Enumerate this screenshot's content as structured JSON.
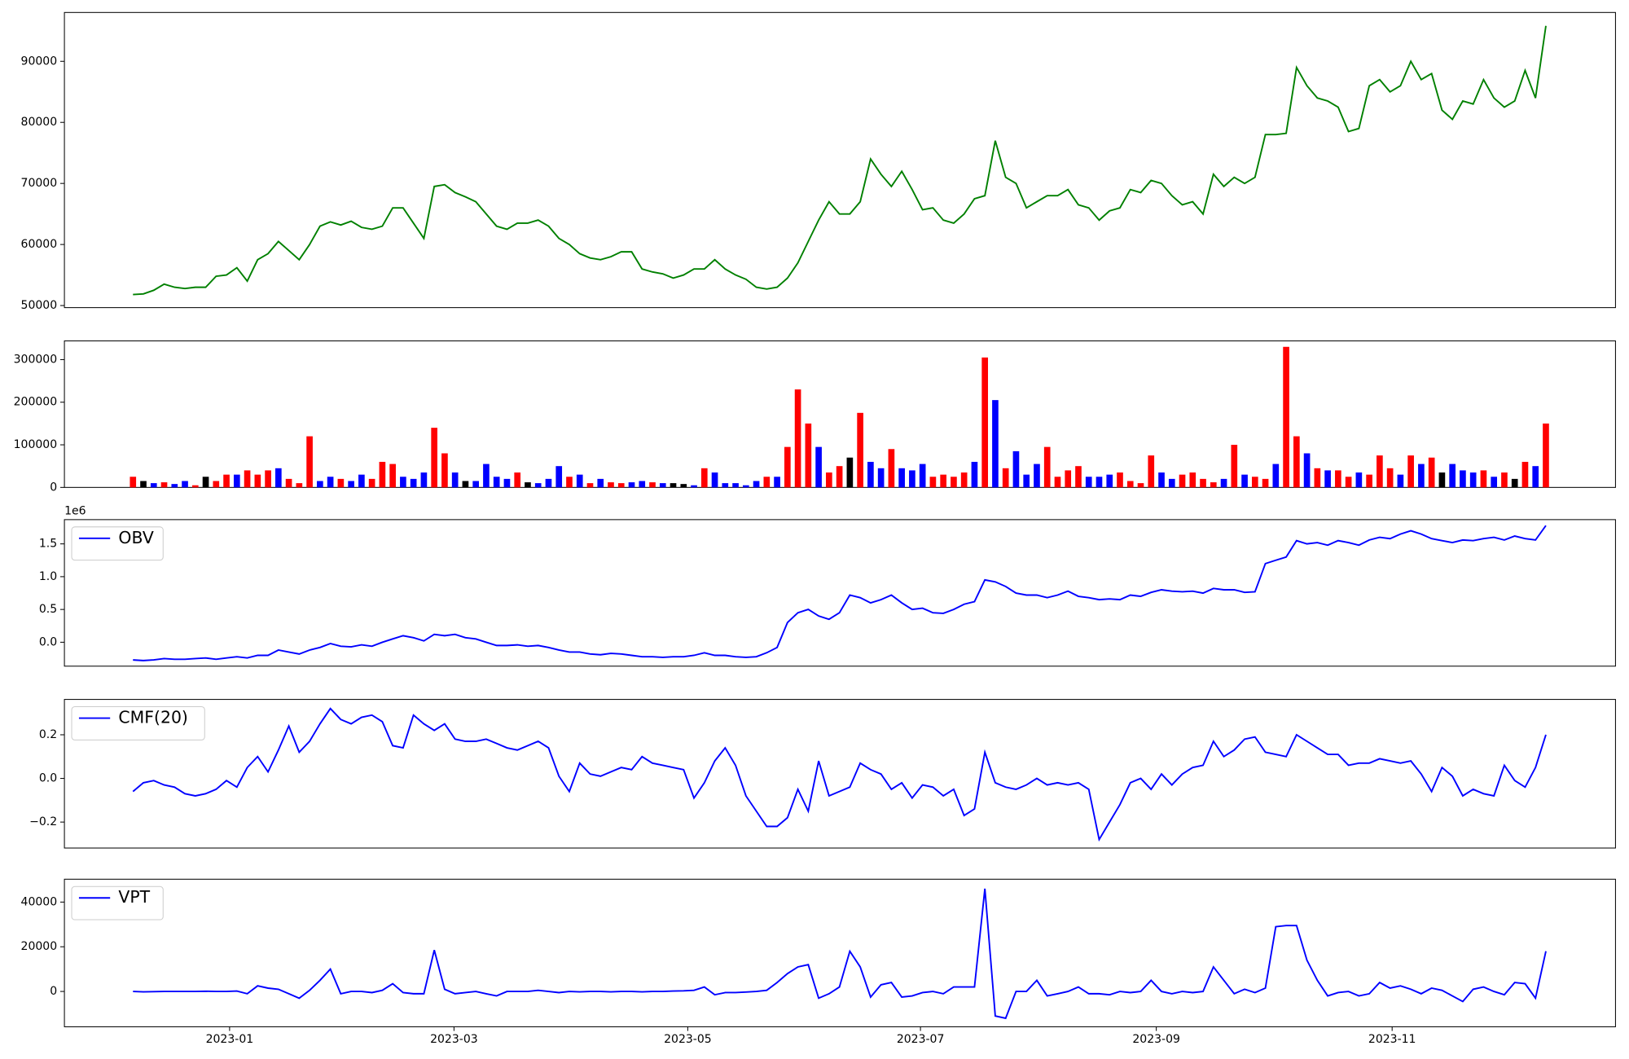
{
  "chart_data": [
    {
      "type": "line",
      "ylim": [
        49660,
        98000
      ],
      "yticks": [
        50000,
        60000,
        70000,
        80000,
        90000
      ],
      "xlim": [
        -6.6,
        142.7
      ],
      "series": [
        {
          "color": "green",
          "values": [
            51800,
            51900,
            52500,
            53500,
            53000,
            52800,
            53000,
            53000,
            54800,
            55000,
            56200,
            54000,
            57500,
            58500,
            60500,
            59000,
            57500,
            60000,
            63000,
            63700,
            63200,
            63800,
            62800,
            62500,
            63000,
            66000,
            66000,
            63500,
            61000,
            69500,
            69800,
            68500,
            67800,
            67000,
            65000,
            63000,
            62500,
            63500,
            63500,
            64000,
            63000,
            61000,
            60000,
            58500,
            57800,
            57500,
            58000,
            58800,
            58800,
            56000,
            55500,
            55200,
            54500,
            55000,
            56000,
            56000,
            57500,
            56000,
            55000,
            54300,
            53000,
            52700,
            53000,
            54500,
            57000,
            60500,
            64000,
            67000,
            65000,
            65000,
            67000,
            74000,
            71500,
            69500,
            72000,
            69000,
            65700,
            66000,
            64000,
            63500,
            65000,
            67500,
            68000,
            77000,
            71000,
            70000,
            66000,
            67000,
            68000,
            68000,
            69000,
            66500,
            66000,
            64000,
            65500,
            66000,
            69000,
            68500,
            70500,
            70000,
            68000,
            66500,
            67000,
            65000,
            71500,
            69500,
            71000,
            70000,
            71000,
            78000,
            78000,
            78200,
            89000,
            86000,
            84000,
            83500,
            82500,
            78500,
            79000,
            86000,
            87000,
            85000,
            86000,
            90000,
            87000,
            88000,
            82000,
            80500,
            83500,
            83000,
            87000,
            84000,
            82500,
            83500,
            88500,
            84000,
            95800
          ]
        }
      ]
    },
    {
      "type": "bar",
      "ylim": [
        0,
        344000
      ],
      "yticks": [
        0,
        100000,
        200000,
        300000
      ],
      "xlim": [
        -6.6,
        142.7
      ],
      "values": [
        25000,
        15000,
        10000,
        12000,
        8000,
        15000,
        5000,
        25000,
        15000,
        30000,
        30000,
        40000,
        30000,
        40000,
        45000,
        20000,
        10000,
        120000,
        15000,
        25000,
        20000,
        15000,
        30000,
        20000,
        60000,
        55000,
        25000,
        20000,
        35000,
        140000,
        80000,
        35000,
        15000,
        15000,
        55000,
        25000,
        20000,
        35000,
        12000,
        10000,
        20000,
        50000,
        25000,
        30000,
        10000,
        20000,
        12000,
        10000,
        12000,
        15000,
        12000,
        10000,
        10000,
        8000,
        5000,
        45000,
        35000,
        10000,
        10000,
        5000,
        15000,
        25000,
        25000,
        95000,
        230000,
        150000,
        95000,
        35000,
        50000,
        70000,
        175000,
        60000,
        45000,
        90000,
        45000,
        40000,
        55000,
        25000,
        30000,
        25000,
        35000,
        60000,
        305000,
        205000,
        45000,
        85000,
        30000,
        55000,
        95000,
        25000,
        40000,
        50000,
        25000,
        25000,
        30000,
        35000,
        15000,
        10000,
        75000,
        35000,
        20000,
        30000,
        35000,
        20000,
        12000,
        20000,
        100000,
        30000,
        25000,
        20000,
        55000,
        330000,
        120000,
        80000,
        45000,
        40000,
        40000,
        25000,
        35000,
        30000,
        75000,
        45000,
        30000,
        75000,
        55000,
        70000,
        35000,
        55000,
        40000,
        35000,
        40000,
        25000,
        35000,
        20000,
        60000,
        50000,
        150000
      ],
      "colors": [
        "red",
        "black",
        "blue",
        "red",
        "blue",
        "blue",
        "red",
        "black",
        "red",
        "red",
        "blue",
        "red",
        "red",
        "red",
        "blue",
        "red",
        "red",
        "red",
        "blue",
        "blue",
        "red",
        "blue",
        "blue",
        "red",
        "red",
        "red",
        "blue",
        "blue",
        "blue",
        "red",
        "red",
        "blue",
        "black",
        "blue",
        "blue",
        "blue",
        "blue",
        "red",
        "black",
        "blue",
        "blue",
        "blue",
        "red",
        "blue",
        "red",
        "blue",
        "red",
        "red",
        "blue",
        "blue",
        "red",
        "blue",
        "black",
        "black",
        "blue",
        "red",
        "blue",
        "blue",
        "blue",
        "blue",
        "blue",
        "red",
        "blue",
        "red",
        "red",
        "red",
        "blue",
        "red",
        "red",
        "black",
        "red",
        "blue",
        "blue",
        "red",
        "blue",
        "blue",
        "blue",
        "red",
        "red",
        "red",
        "red",
        "blue",
        "red",
        "blue",
        "red",
        "blue",
        "blue",
        "blue",
        "red",
        "red",
        "red",
        "red",
        "blue",
        "blue",
        "blue",
        "red",
        "red",
        "red",
        "red",
        "blue",
        "blue",
        "red",
        "red",
        "red",
        "red",
        "blue",
        "red",
        "blue",
        "red",
        "red",
        "blue",
        "red",
        "red",
        "blue",
        "red",
        "blue",
        "red",
        "red",
        "blue",
        "red",
        "red",
        "red",
        "blue",
        "red",
        "blue",
        "red",
        "black",
        "blue",
        "blue",
        "blue",
        "red",
        "blue",
        "red",
        "black",
        "red",
        "blue",
        "red"
      ]
    },
    {
      "type": "line",
      "ylim": [
        -0.365,
        1.87
      ],
      "yticks": [
        {
          "value": 0,
          "label": "0.0"
        },
        0.5,
        {
          "value": 1,
          "label": "1.0"
        },
        1.5
      ],
      "y_offset_text": "1e6",
      "legend": "upper left",
      "xlim": [
        -6.6,
        142.7
      ],
      "series": [
        {
          "name": "OBV",
          "color": "blue",
          "values": [
            -0.27,
            -0.28,
            -0.27,
            -0.25,
            -0.26,
            -0.26,
            -0.25,
            -0.24,
            -0.26,
            -0.24,
            -0.22,
            -0.24,
            -0.2,
            -0.2,
            -0.12,
            -0.15,
            -0.18,
            -0.12,
            -0.08,
            -0.02,
            -0.06,
            -0.07,
            -0.04,
            -0.06,
            0,
            0.05,
            0.1,
            0.07,
            0.02,
            0.12,
            0.1,
            0.12,
            0.07,
            0.05,
            0,
            -0.05,
            -0.05,
            -0.04,
            -0.06,
            -0.05,
            -0.08,
            -0.12,
            -0.15,
            -0.15,
            -0.18,
            -0.19,
            -0.17,
            -0.18,
            -0.2,
            -0.22,
            -0.22,
            -0.23,
            -0.22,
            -0.22,
            -0.2,
            -0.16,
            -0.2,
            -0.2,
            -0.22,
            -0.23,
            -0.22,
            -0.16,
            -0.08,
            0.3,
            0.45,
            0.5,
            0.4,
            0.35,
            0.45,
            0.72,
            0.68,
            0.6,
            0.65,
            0.72,
            0.6,
            0.5,
            0.52,
            0.45,
            0.44,
            0.5,
            0.58,
            0.62,
            0.95,
            0.92,
            0.85,
            0.75,
            0.72,
            0.72,
            0.68,
            0.72,
            0.78,
            0.7,
            0.68,
            0.65,
            0.66,
            0.65,
            0.72,
            0.7,
            0.76,
            0.8,
            0.78,
            0.77,
            0.78,
            0.75,
            0.82,
            0.8,
            0.8,
            0.76,
            0.77,
            1.2,
            1.25,
            1.3,
            1.55,
            1.5,
            1.52,
            1.48,
            1.55,
            1.52,
            1.48,
            1.56,
            1.6,
            1.58,
            1.65,
            1.7,
            1.65,
            1.58,
            1.55,
            1.52,
            1.56,
            1.55,
            1.58,
            1.6,
            1.56,
            1.62,
            1.58,
            1.56,
            1.78
          ]
        }
      ]
    },
    {
      "type": "line",
      "ylim": [
        -0.319,
        0.362
      ],
      "yticks": [
        {
          "value": -0.2,
          "label": "−0.2"
        },
        {
          "value": 0,
          "label": "0.0"
        },
        0.2
      ],
      "legend": "upper left",
      "xlim": [
        -6.6,
        142.7
      ],
      "series": [
        {
          "name": "CMF(20)",
          "color": "blue",
          "values": [
            -0.06,
            -0.02,
            -0.01,
            -0.03,
            -0.04,
            -0.07,
            -0.08,
            -0.07,
            -0.05,
            -0.01,
            -0.04,
            0.05,
            0.1,
            0.03,
            0.13,
            0.24,
            0.12,
            0.17,
            0.25,
            0.32,
            0.27,
            0.25,
            0.28,
            0.29,
            0.26,
            0.15,
            0.14,
            0.29,
            0.25,
            0.22,
            0.25,
            0.18,
            0.17,
            0.17,
            0.18,
            0.16,
            0.14,
            0.13,
            0.15,
            0.17,
            0.14,
            0.01,
            -0.06,
            0.07,
            0.02,
            0.01,
            0.03,
            0.05,
            0.04,
            0.1,
            0.07,
            0.06,
            0.05,
            0.04,
            -0.09,
            -0.02,
            0.08,
            0.14,
            0.06,
            -0.08,
            -0.15,
            -0.22,
            -0.22,
            -0.18,
            -0.05,
            -0.15,
            0.08,
            -0.08,
            -0.06,
            -0.04,
            0.07,
            0.04,
            0.02,
            -0.05,
            -0.02,
            -0.09,
            -0.03,
            -0.04,
            -0.08,
            -0.05,
            -0.17,
            -0.14,
            0.12,
            -0.02,
            -0.04,
            -0.05,
            -0.03,
            0,
            -0.03,
            -0.02,
            -0.03,
            -0.02,
            -0.05,
            -0.28,
            -0.2,
            -0.12,
            -0.02,
            0,
            -0.05,
            0.02,
            -0.03,
            0.02,
            0.05,
            0.06,
            0.17,
            0.1,
            0.13,
            0.18,
            0.19,
            0.12,
            0.11,
            0.1,
            0.2,
            0.17,
            0.14,
            0.11,
            0.11,
            0.06,
            0.07,
            0.07,
            0.09,
            0.08,
            0.07,
            0.08,
            0.02,
            -0.06,
            0.05,
            0.01,
            -0.08,
            -0.05,
            -0.07,
            -0.08,
            0.06,
            -0.01,
            -0.04,
            0.05,
            0.2
          ]
        }
      ]
    },
    {
      "type": "line",
      "ylim": [
        -15814,
        50233
      ],
      "yticks": [
        0,
        20000,
        40000
      ],
      "legend": "upper left",
      "xlim": [
        -6.6,
        142.7
      ],
      "xticks": [
        {
          "value": 9.3,
          "label": "2023-01"
        },
        {
          "value": 30.9,
          "label": "2023-03"
        },
        {
          "value": 53.4,
          "label": "2023-05"
        },
        {
          "value": 75.8,
          "label": "2023-07"
        },
        {
          "value": 98.5,
          "label": "2023-09"
        },
        {
          "value": 121.2,
          "label": "2023-11"
        }
      ],
      "series": [
        {
          "name": "VPT",
          "color": "blue",
          "values": [
            0,
            -200,
            -100,
            0,
            0,
            0,
            0,
            100,
            0,
            0,
            200,
            -1000,
            2500,
            1500,
            1000,
            -1000,
            -3000,
            500,
            5000,
            10000,
            -1000,
            0,
            0,
            -500,
            500,
            3500,
            -500,
            -1000,
            -1000,
            18500,
            1000,
            -1000,
            -500,
            0,
            -1000,
            -2000,
            0,
            0,
            0,
            500,
            0,
            -500,
            0,
            -200,
            0,
            0,
            -200,
            0,
            0,
            -200,
            0,
            0,
            200,
            300,
            500,
            2000,
            -1500,
            -500,
            -500,
            -300,
            0,
            500,
            4000,
            8000,
            11000,
            12000,
            -3000,
            -1000,
            2000,
            18000,
            11000,
            -2500,
            3000,
            4000,
            -2500,
            -2000,
            -500,
            0,
            -1000,
            2000,
            2000,
            2000,
            46000,
            -11000,
            -12000,
            0,
            0,
            5000,
            -2000,
            -1000,
            0,
            2000,
            -1000,
            -1000,
            -1500,
            0,
            -500,
            0,
            5000,
            0,
            -1000,
            0,
            -500,
            0,
            11000,
            5000,
            -1000,
            1000,
            -500,
            1500,
            29000,
            29500,
            29500,
            14000,
            5000,
            -2000,
            -500,
            0,
            -2000,
            -1000,
            4000,
            1500,
            2500,
            1000,
            -1000,
            1500,
            500,
            -2000,
            -4500,
            1000,
            2000,
            0,
            -1500,
            4000,
            3500,
            -3000,
            18000
          ]
        }
      ]
    }
  ]
}
